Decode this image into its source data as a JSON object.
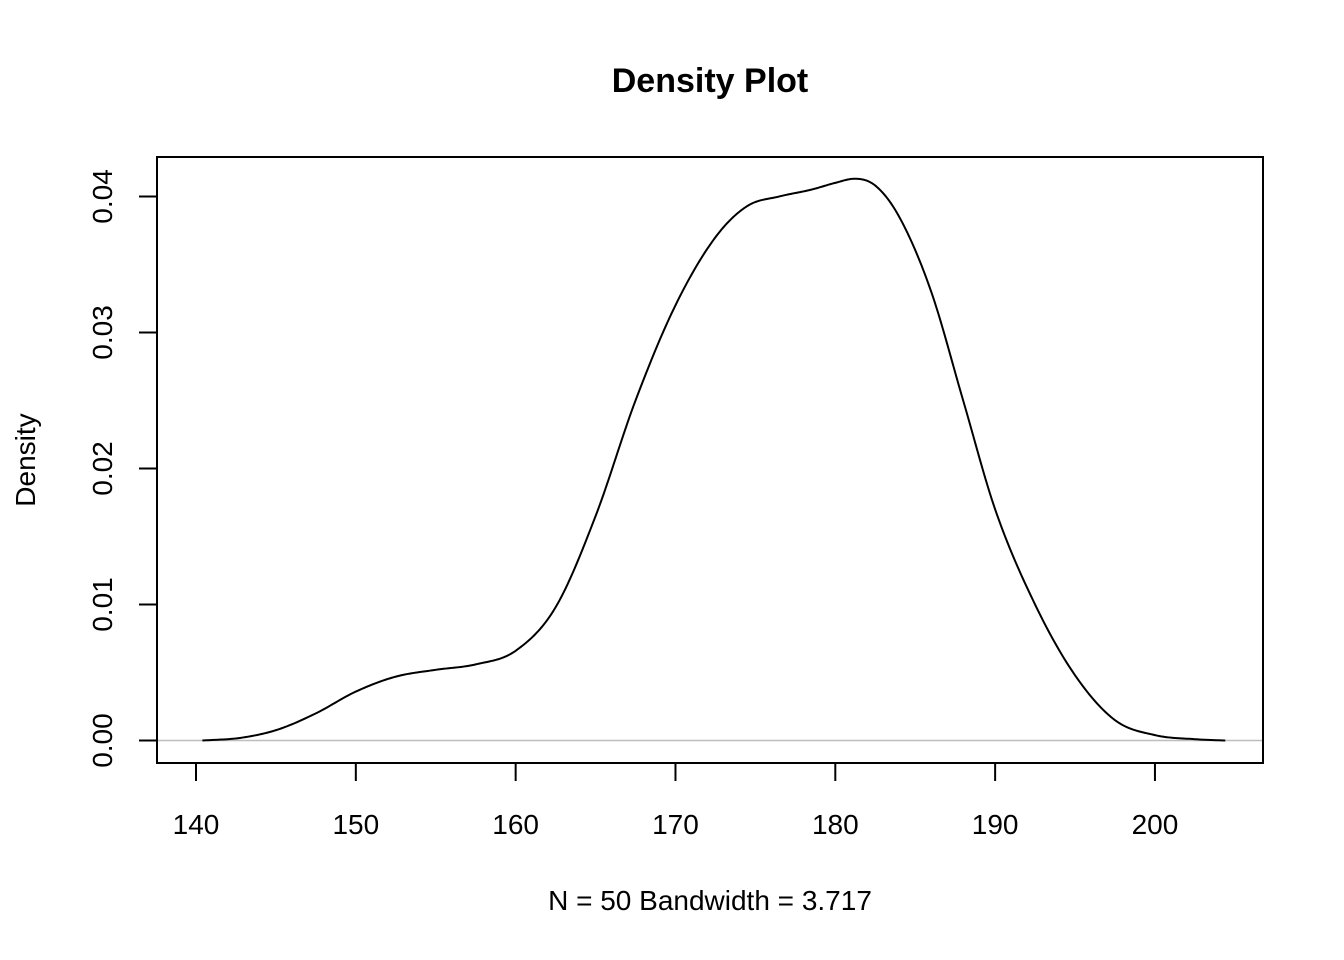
{
  "chart_data": {
    "type": "line",
    "title": "Density Plot",
    "xlabel": "N = 50   Bandwidth = 3.717",
    "ylabel": "Density",
    "xlim": [
      137.56,
      206.76
    ],
    "ylim": [
      -0.00165,
      0.0429
    ],
    "x_ticks": [
      "140",
      "150",
      "160",
      "170",
      "180",
      "190",
      "200"
    ],
    "y_ticks": [
      "0.00",
      "0.01",
      "0.02",
      "0.03",
      "0.04"
    ],
    "baseline": {
      "value": 0,
      "color": "#bebebe"
    },
    "grid": false,
    "legend": "none",
    "line_color": "#000000",
    "series": [
      {
        "x": [
          140.4,
          142.8,
          145.1,
          147.5,
          150.0,
          152.5,
          155.0,
          157.5,
          160.0,
          162.5,
          165.0,
          167.5,
          170.0,
          172.5,
          174.5,
          176.5,
          178.5,
          180.0,
          181.2,
          182.5,
          184.0,
          186.0,
          188.0,
          190.0,
          192.5,
          195.0,
          197.5,
          200.0,
          202.5,
          204.4
        ],
        "y": [
          0.0,
          0.0002,
          0.0008,
          0.002,
          0.0036,
          0.0047,
          0.0052,
          0.0056,
          0.0066,
          0.0098,
          0.0165,
          0.025,
          0.032,
          0.037,
          0.0393,
          0.04,
          0.0405,
          0.041,
          0.0413,
          0.0408,
          0.0385,
          0.033,
          0.025,
          0.017,
          0.01,
          0.0048,
          0.0015,
          0.0004,
          0.0001,
          0.0
        ]
      }
    ]
  }
}
